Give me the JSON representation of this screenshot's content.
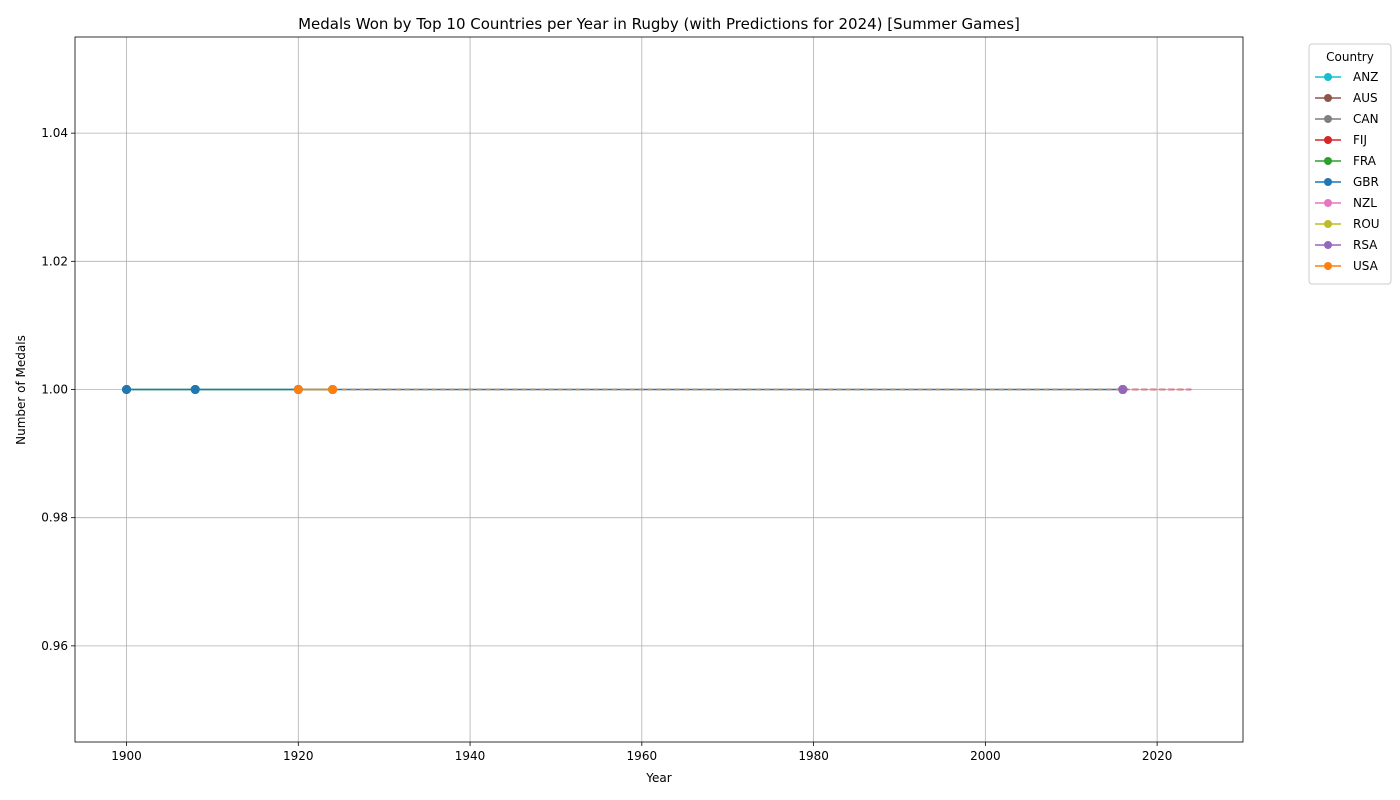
{
  "chart_data": {
    "type": "line",
    "title": "Medals Won by Top 10 Countries per Year in Rugby (with Predictions for 2024) [Summer Games]",
    "xlabel": "Year",
    "ylabel": "Number of Medals",
    "xlim": [
      1894,
      2030
    ],
    "ylim": [
      0.945,
      1.055
    ],
    "xticks": [
      1900,
      1920,
      1940,
      1960,
      1980,
      2000,
      2020
    ],
    "yticks": [
      0.96,
      0.98,
      1.0,
      1.02,
      1.04
    ],
    "ytick_labels": [
      "0.96",
      "0.98",
      "1.00",
      "1.02",
      "1.04"
    ],
    "grid": true,
    "legend_title": "Country",
    "legend_position": "outside-top-right",
    "prediction_year": 2024,
    "series": [
      {
        "name": "ANZ",
        "color": "#17becf",
        "points": [
          [
            1908,
            1
          ]
        ]
      },
      {
        "name": "AUS",
        "color": "#8c564b",
        "points": [
          [
            2016,
            1
          ]
        ]
      },
      {
        "name": "CAN",
        "color": "#7f7f7f",
        "points": [
          [
            2016,
            1
          ]
        ]
      },
      {
        "name": "FIJ",
        "color": "#d62728",
        "points": [
          [
            2016,
            1
          ]
        ]
      },
      {
        "name": "FRA",
        "color": "#2ca02c",
        "points": [
          [
            1900,
            1
          ],
          [
            1908,
            1
          ],
          [
            1920,
            1
          ],
          [
            1924,
            1
          ]
        ]
      },
      {
        "name": "GBR",
        "color": "#1f77b4",
        "points": [
          [
            1900,
            1
          ],
          [
            1908,
            1
          ],
          [
            1920,
            1
          ],
          [
            1924,
            1
          ],
          [
            2016,
            1
          ]
        ]
      },
      {
        "name": "NZL",
        "color": "#e377c2",
        "points": [
          [
            2016,
            1
          ]
        ]
      },
      {
        "name": "ROU",
        "color": "#bcbd22",
        "points": [
          [
            1924,
            1
          ]
        ]
      },
      {
        "name": "RSA",
        "color": "#9467bd",
        "points": [
          [
            2016,
            1
          ]
        ]
      },
      {
        "name": "USA",
        "color": "#ff7f0e",
        "points": [
          [
            1920,
            1
          ],
          [
            1924,
            1
          ]
        ]
      }
    ],
    "predictions": [
      {
        "name": "GBR",
        "color": "#1f77b4",
        "from": [
          1924,
          1
        ],
        "to": [
          2024,
          1
        ]
      },
      {
        "name": "USA",
        "color": "#ff7f0e",
        "from": [
          1924,
          1
        ],
        "to": [
          2024,
          1
        ]
      },
      {
        "name": "FIJ",
        "color": "#d62728",
        "from": [
          2016,
          1
        ],
        "to": [
          2024,
          1
        ]
      },
      {
        "name": "NZL",
        "color": "#e377c2",
        "from": [
          2016,
          1
        ],
        "to": [
          2024,
          1
        ]
      }
    ]
  }
}
